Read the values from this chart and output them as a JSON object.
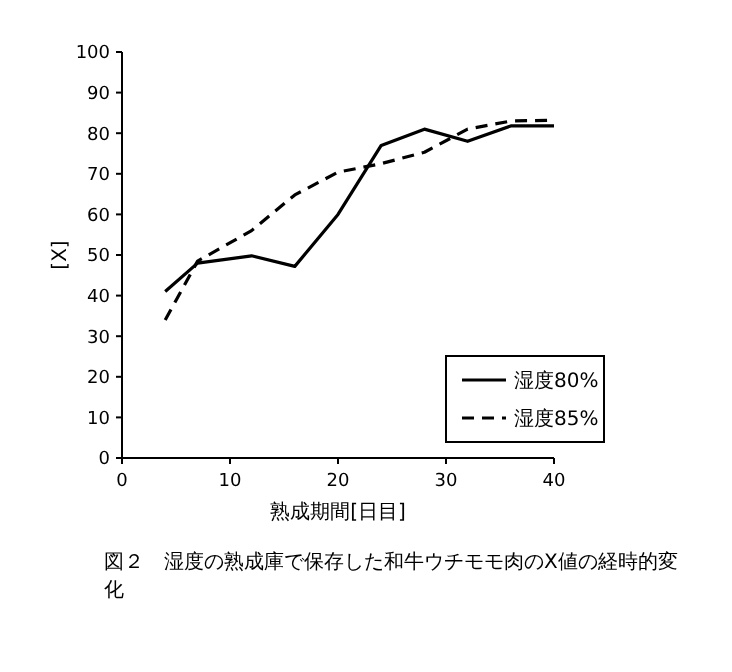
{
  "chart_data": {
    "type": "line",
    "xlabel": "熟成期間[日目]",
    "ylabel": "[X]",
    "xlim": [
      0,
      40
    ],
    "xticks": [
      0,
      10,
      20,
      30,
      40
    ],
    "ylim": [
      0,
      100
    ],
    "yticks": [
      0,
      10,
      20,
      30,
      40,
      50,
      60,
      70,
      80,
      90,
      100
    ],
    "legend": "bottom right",
    "grid": false,
    "marker": "none",
    "annotations": [
      "図２　湿度の熟成庫で保存した和牛ウチモモ肉のX値の経時的変化"
    ],
    "series": [
      {
        "name": "湿度80%",
        "color": "#000000",
        "line_style": "solid",
        "x": [
          4,
          7,
          12,
          16,
          20,
          24,
          28,
          32,
          36,
          40
        ],
        "values": [
          41,
          48,
          49.8,
          47.2,
          60,
          77,
          81,
          78,
          81.8,
          81.8
        ]
      },
      {
        "name": "湿度85%",
        "color": "#000000",
        "line_style": "dashed",
        "x": [
          4,
          7,
          12,
          16,
          20,
          24,
          28,
          32,
          36,
          40
        ],
        "values": [
          34,
          48.5,
          56,
          64.8,
          70.4,
          72.5,
          75.3,
          81,
          83,
          83.2
        ]
      }
    ]
  }
}
